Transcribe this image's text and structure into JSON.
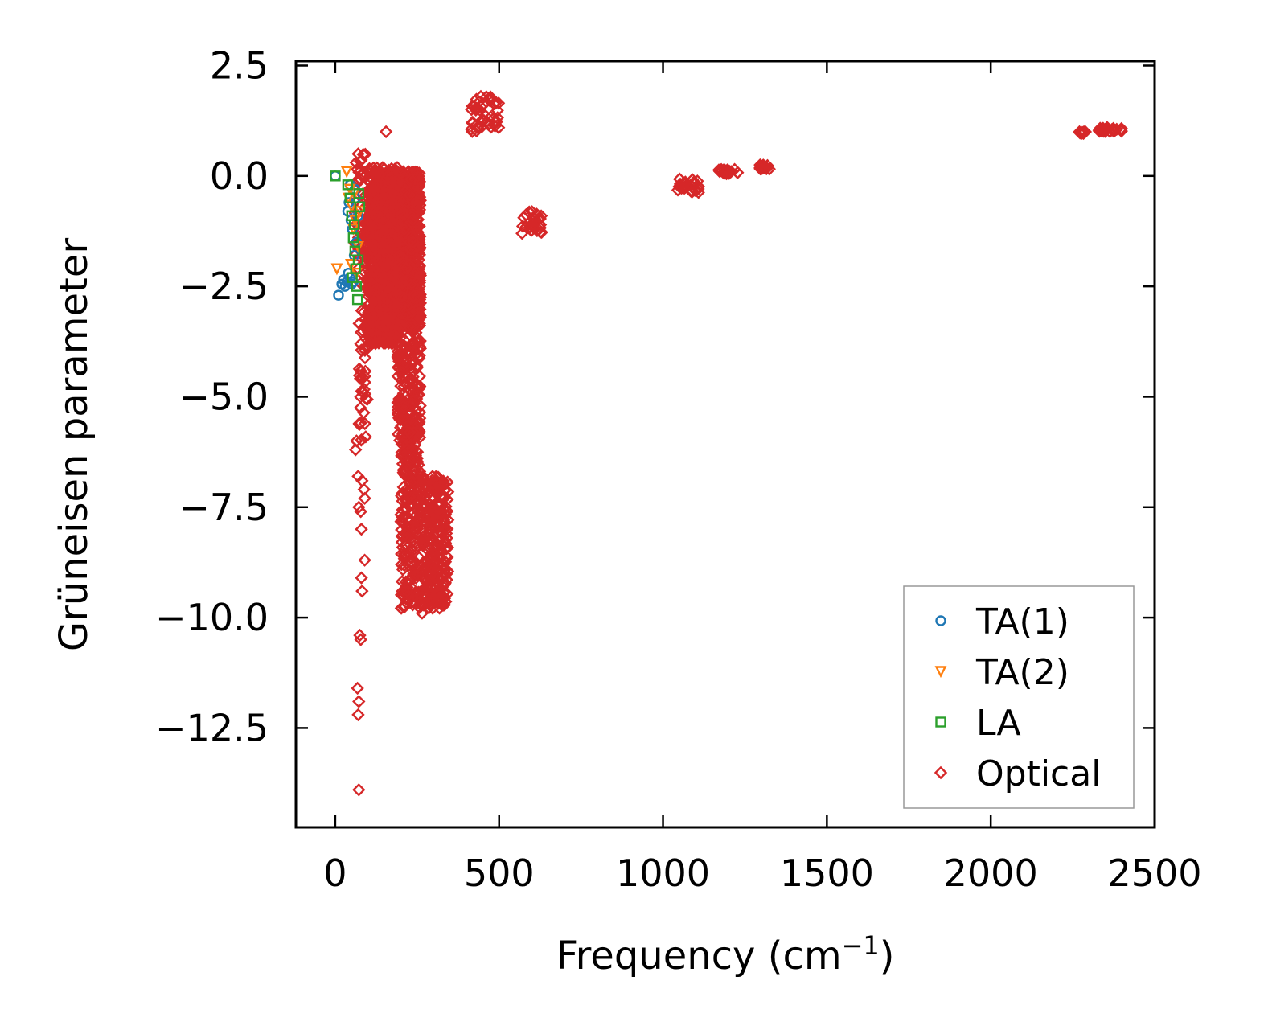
{
  "chart_data": {
    "type": "scatter",
    "title": "",
    "xlabel": "Frequency (cm",
    "xlabel_sup": "−1",
    "xlabel_end": ")",
    "ylabel": "Grüneisen parameter",
    "xlim": [
      -120,
      2500
    ],
    "ylim": [
      -14.75,
      2.6
    ],
    "xticks": [
      0,
      500,
      1000,
      1500,
      2000,
      2500
    ],
    "xtick_labels": [
      "0",
      "500",
      "1000",
      "1500",
      "2000",
      "2500"
    ],
    "yticks": [
      2.5,
      0.0,
      -2.5,
      -5.0,
      -7.5,
      -10.0,
      -12.5
    ],
    "ytick_labels": [
      "2.5",
      "0.0",
      "−2.5",
      "−5.0",
      "−7.5",
      "−10.0",
      "−12.5"
    ],
    "legend_position": "lower-right",
    "series": [
      {
        "name": "TA(1)",
        "marker": "circle",
        "color": "#1f77b4",
        "points": [
          [
            0,
            0.0
          ],
          [
            10,
            -2.7
          ],
          [
            20,
            -2.45
          ],
          [
            25,
            -2.35
          ],
          [
            30,
            -2.5
          ],
          [
            35,
            -2.4
          ],
          [
            40,
            -2.2
          ],
          [
            45,
            -2.3
          ],
          [
            50,
            -2.45
          ],
          [
            38,
            -0.8
          ],
          [
            42,
            -0.6
          ],
          [
            48,
            -1.0
          ],
          [
            52,
            -1.2
          ],
          [
            55,
            -2.4
          ],
          [
            60,
            -0.3
          ],
          [
            45,
            -0.2
          ],
          [
            62,
            -0.5
          ],
          [
            65,
            -1.5
          ],
          [
            58,
            -1.8
          ],
          [
            70,
            -0.9
          ]
        ]
      },
      {
        "name": "TA(2)",
        "marker": "triangle-down",
        "color": "#ff7f0e",
        "points": [
          [
            5,
            -2.1
          ],
          [
            35,
            0.1
          ],
          [
            40,
            -0.5
          ],
          [
            45,
            -0.3
          ],
          [
            50,
            -0.7
          ],
          [
            55,
            -1.2
          ],
          [
            60,
            -1.0
          ],
          [
            65,
            -2.2
          ],
          [
            70,
            -1.6
          ],
          [
            48,
            -2.0
          ],
          [
            58,
            -0.4
          ],
          [
            75,
            -0.8
          ]
        ]
      },
      {
        "name": "LA",
        "marker": "square",
        "color": "#2ca02c",
        "points": [
          [
            0,
            0.0
          ],
          [
            38,
            -0.2
          ],
          [
            45,
            -0.5
          ],
          [
            50,
            -0.9
          ],
          [
            55,
            -1.4
          ],
          [
            60,
            -1.7
          ],
          [
            62,
            -2.1
          ],
          [
            65,
            -2.5
          ],
          [
            68,
            -2.8
          ],
          [
            70,
            -1.9
          ],
          [
            72,
            -0.4
          ],
          [
            58,
            -1.1
          ],
          [
            52,
            -2.3
          ],
          [
            75,
            -0.7
          ]
        ]
      },
      {
        "name": "Optical",
        "marker": "diamond",
        "color": "#d62728",
        "clusters": [
          {
            "x": [
              60,
              100
            ],
            "y": [
              -2.5,
              0.5
            ],
            "n": 60
          },
          {
            "x": [
              70,
              100
            ],
            "y": [
              -6.0,
              -3.0
            ],
            "n": 40
          },
          {
            "x": [
              100,
              200
            ],
            "y": [
              -3.8,
              0.2
            ],
            "n": 900
          },
          {
            "x": [
              150,
              260
            ],
            "y": [
              -3.4,
              0.1
            ],
            "n": 900
          },
          {
            "x": [
              190,
              260
            ],
            "y": [
              -6.0,
              -2.0
            ],
            "n": 250
          },
          {
            "x": [
              200,
              260
            ],
            "y": [
              -9.8,
              -5.5
            ],
            "n": 220
          },
          {
            "x": [
              265,
              345
            ],
            "y": [
              -9.8,
              -6.8
            ],
            "n": 260
          },
          {
            "x": [
              415,
              500
            ],
            "y": [
              1.0,
              1.8
            ],
            "n": 45
          },
          {
            "x": [
              565,
              630
            ],
            "y": [
              -1.3,
              -0.8
            ],
            "n": 25
          },
          {
            "x": [
              1045,
              1110
            ],
            "y": [
              -0.4,
              -0.05
            ],
            "n": 25
          },
          {
            "x": [
              1170,
              1230
            ],
            "y": [
              0.05,
              0.15
            ],
            "n": 22
          },
          {
            "x": [
              1295,
              1325
            ],
            "y": [
              0.15,
              0.25
            ],
            "n": 16
          },
          {
            "x": [
              2270,
              2295
            ],
            "y": [
              0.95,
              1.0
            ],
            "n": 8
          },
          {
            "x": [
              2330,
              2400
            ],
            "y": [
              1.0,
              1.1
            ],
            "n": 24
          }
        ],
        "points": [
          [
            155,
            1.0
          ],
          [
            70,
            0.5
          ],
          [
            72,
            -13.9
          ],
          [
            70,
            -12.2
          ],
          [
            68,
            -11.6
          ],
          [
            72,
            -11.9
          ],
          [
            75,
            -10.4
          ],
          [
            78,
            -10.5
          ],
          [
            80,
            -9.1
          ],
          [
            82,
            -9.4
          ],
          [
            90,
            -8.7
          ],
          [
            80,
            -8.0
          ],
          [
            78,
            -7.6
          ],
          [
            72,
            -7.5
          ],
          [
            70,
            -6.8
          ],
          [
            82,
            -6.9
          ],
          [
            88,
            -7.1
          ],
          [
            90,
            -7.3
          ],
          [
            65,
            -6.0
          ],
          [
            62,
            -6.2
          ],
          [
            260,
            -9.7
          ],
          [
            265,
            -9.9
          ],
          [
            245,
            -9.5
          ],
          [
            220,
            -9.4
          ]
        ]
      }
    ]
  }
}
